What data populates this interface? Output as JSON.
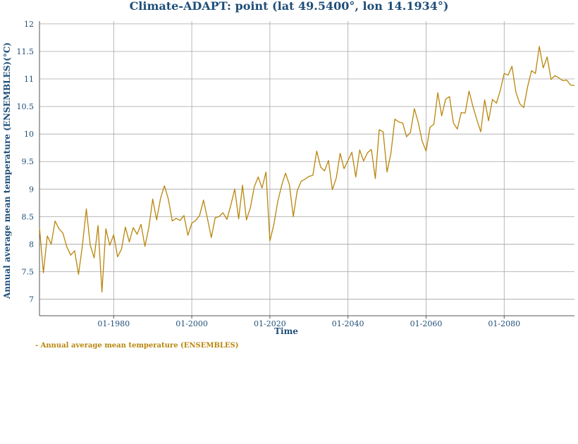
{
  "title": "Climate-ADAPT: point (lat 49.5400°, lon 14.1934°)",
  "legend_label": "- Annual average mean temperature (ENSEMBLES)",
  "colors": {
    "series": "#b8860b",
    "axis_text": "#1f4e79",
    "grid": "#a6a6a6"
  },
  "chart_data": {
    "type": "line",
    "title": "Climate-ADAPT: point (lat 49.5400°, lon 14.1934°)",
    "xlabel": "Time",
    "ylabel": "Annual average mean temperature (ENSEMBLES)(°C)",
    "x_ticks": [
      "01-1980",
      "01-2000",
      "01-2020",
      "01-2040",
      "01-2060",
      "01-2080"
    ],
    "y_ticks": [
      "7",
      "7.5",
      "8",
      "8.5",
      "9",
      "9.5",
      "10",
      "10.5",
      "11",
      "11.5",
      "12"
    ],
    "ylim": [
      6.7,
      12.05
    ],
    "xlim": [
      "1961-01",
      "2098-01"
    ],
    "grid": true,
    "series": [
      {
        "name": "Annual average mean temperature (ENSEMBLES)",
        "x": [
          "1961-01",
          "1962-01",
          "1963-01",
          "1964-01",
          "1965-01",
          "1966-01",
          "1967-01",
          "1968-01",
          "1969-01",
          "1970-01",
          "1971-01",
          "1972-01",
          "1973-01",
          "1974-01",
          "1975-01",
          "1976-01",
          "1977-01",
          "1978-01",
          "1979-01",
          "1980-01",
          "1981-01",
          "1982-01",
          "1983-01",
          "1984-01",
          "1985-01",
          "1986-01",
          "1987-01",
          "1988-01",
          "1989-01",
          "1990-01",
          "1991-01",
          "1992-01",
          "1993-01",
          "1994-01",
          "1995-01",
          "1996-01",
          "1997-01",
          "1998-01",
          "1999-01",
          "2000-01",
          "2001-01",
          "2002-01",
          "2003-01",
          "2004-01",
          "2005-01",
          "2006-01",
          "2007-01",
          "2008-01",
          "2009-01",
          "2010-01",
          "2011-01",
          "2012-01",
          "2013-01",
          "2014-01",
          "2015-01",
          "2016-01",
          "2017-01",
          "2018-01",
          "2019-01",
          "2020-01",
          "2021-01",
          "2022-01",
          "2023-01",
          "2024-01",
          "2025-01",
          "2026-01",
          "2027-01",
          "2028-01",
          "2029-01",
          "2030-01",
          "2031-01",
          "2032-01",
          "2033-01",
          "2034-01",
          "2035-01",
          "2036-01",
          "2037-01",
          "2038-01",
          "2039-01",
          "2040-01",
          "2041-01",
          "2042-01",
          "2043-01",
          "2044-01",
          "2045-01",
          "2046-01",
          "2047-01",
          "2048-01",
          "2049-01",
          "2050-01",
          "2051-01",
          "2052-01",
          "2053-01",
          "2054-01",
          "2055-01",
          "2056-01",
          "2057-01",
          "2058-01",
          "2059-01",
          "2060-01",
          "2061-01",
          "2062-01",
          "2063-01",
          "2064-01",
          "2065-01",
          "2066-01",
          "2067-01",
          "2068-01",
          "2069-01",
          "2070-01",
          "2071-01",
          "2072-01",
          "2073-01",
          "2074-01",
          "2075-01",
          "2076-01",
          "2077-01",
          "2078-01",
          "2079-01",
          "2080-01",
          "2081-01",
          "2082-01",
          "2083-01",
          "2084-01",
          "2085-01",
          "2086-01",
          "2087-01",
          "2088-01",
          "2089-01",
          "2090-01",
          "2091-01",
          "2092-01",
          "2093-01",
          "2094-01",
          "2095-01",
          "2096-01",
          "2097-01",
          "2098-01"
        ],
        "y": [
          8.3,
          7.48,
          8.15,
          8.0,
          8.42,
          8.28,
          8.2,
          7.95,
          7.8,
          7.88,
          7.45,
          7.98,
          8.64,
          7.98,
          7.75,
          8.34,
          7.13,
          8.28,
          7.98,
          8.17,
          7.77,
          7.91,
          8.31,
          8.04,
          8.3,
          8.18,
          8.36,
          7.96,
          8.3,
          8.82,
          8.44,
          8.83,
          9.06,
          8.82,
          8.42,
          8.47,
          8.43,
          8.52,
          8.16,
          8.38,
          8.43,
          8.52,
          8.8,
          8.47,
          8.12,
          8.48,
          8.5,
          8.57,
          8.45,
          8.71,
          9.0,
          8.46,
          9.07,
          8.44,
          8.66,
          9.04,
          9.22,
          9.02,
          9.31,
          8.06,
          8.35,
          8.77,
          9.06,
          9.29,
          9.08,
          8.5,
          8.97,
          9.14,
          9.18,
          9.23,
          9.25,
          9.69,
          9.4,
          9.33,
          9.52,
          8.99,
          9.2,
          9.65,
          9.37,
          9.52,
          9.67,
          9.22,
          9.71,
          9.51,
          9.66,
          9.72,
          9.19,
          10.08,
          10.04,
          9.31,
          9.65,
          10.27,
          10.22,
          10.2,
          9.95,
          10.03,
          10.46,
          10.21,
          9.87,
          9.69,
          10.12,
          10.18,
          10.75,
          10.33,
          10.63,
          10.68,
          10.2,
          10.09,
          10.39,
          10.38,
          10.78,
          10.5,
          10.26,
          10.04,
          10.62,
          10.24,
          10.63,
          10.56,
          10.79,
          11.1,
          11.07,
          11.23,
          10.76,
          10.55,
          10.48,
          10.86,
          11.15,
          11.1,
          11.59,
          11.2,
          11.4,
          10.99,
          11.06,
          11.02,
          10.97,
          10.98,
          10.89,
          10.88
        ]
      }
    ]
  }
}
